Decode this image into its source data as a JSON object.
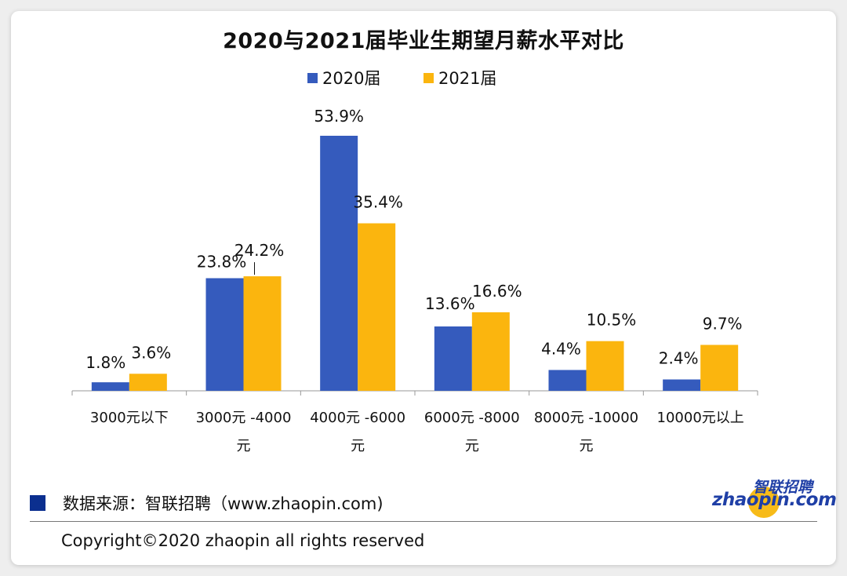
{
  "chart_data": {
    "type": "bar",
    "title": "2020与2021届毕业生期望月薪水平对比",
    "categories": [
      [
        "3000元以下"
      ],
      [
        "3000元 -4000",
        "元"
      ],
      [
        "4000元 -6000",
        "元"
      ],
      [
        "6000元 -8000",
        "元"
      ],
      [
        "8000元 -10000",
        "元"
      ],
      [
        "10000元以上"
      ]
    ],
    "series": [
      {
        "name": "2020届",
        "color": "#355bbd",
        "values": [
          1.8,
          23.8,
          53.9,
          13.6,
          4.4,
          2.4
        ],
        "labels": [
          "1.8%",
          "23.8%",
          "53.9%",
          "13.6%",
          "4.4%",
          "2.4%"
        ]
      },
      {
        "name": "2021届",
        "color": "#fbb50e",
        "values": [
          3.6,
          24.2,
          35.4,
          16.6,
          10.5,
          9.7
        ],
        "labels": [
          "3.6%",
          "24.2%",
          "35.4%",
          "16.6%",
          "10.5%",
          "9.7%"
        ]
      }
    ],
    "ylim": [
      0,
      60
    ],
    "grid": false,
    "legend_position": "top-center"
  },
  "footer": {
    "source": "数据来源：智联招聘（www.zhaopin.com)",
    "copyright": "Copyright©2020 zhaopin all rights reserved"
  },
  "logo": {
    "cn": "智联招聘",
    "en": "zhaopin.com"
  }
}
